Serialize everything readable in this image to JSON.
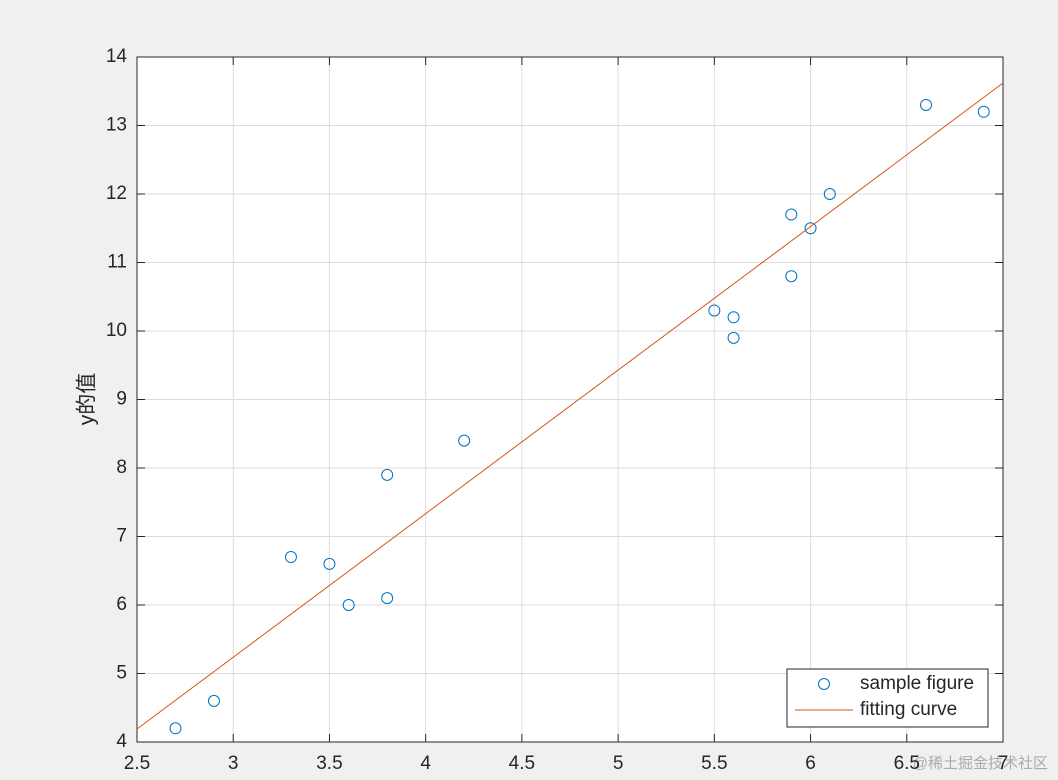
{
  "chart_data": {
    "type": "scatter",
    "ylabel": "y的值",
    "series": [
      {
        "name": "sample figure",
        "type": "scatter",
        "color": "#0072bd",
        "x": [
          2.7,
          2.9,
          3.3,
          3.5,
          3.6,
          3.8,
          3.8,
          4.2,
          5.5,
          5.6,
          5.6,
          5.9,
          5.9,
          6.0,
          6.1,
          6.6,
          6.9
        ],
        "values": [
          4.2,
          4.6,
          6.7,
          6.6,
          6.0,
          7.9,
          6.1,
          8.4,
          10.3,
          10.2,
          9.9,
          11.7,
          10.8,
          11.5,
          12.0,
          13.3,
          13.2
        ]
      },
      {
        "name": "fitting curve",
        "type": "line",
        "color": "#d95319",
        "x": [
          2.5,
          7
        ],
        "values": [
          4.19,
          13.62
        ]
      }
    ],
    "xlim": [
      2.5,
      7
    ],
    "xticks": [
      2.5,
      3,
      3.5,
      4,
      4.5,
      5,
      5.5,
      6,
      6.5,
      7
    ],
    "ylim": [
      4,
      14
    ],
    "yticks": [
      4,
      5,
      6,
      7,
      8,
      9,
      10,
      11,
      12,
      13,
      14
    ],
    "grid": true,
    "legend": "lower-right",
    "watermark": "@稀土掘金技术社区"
  }
}
